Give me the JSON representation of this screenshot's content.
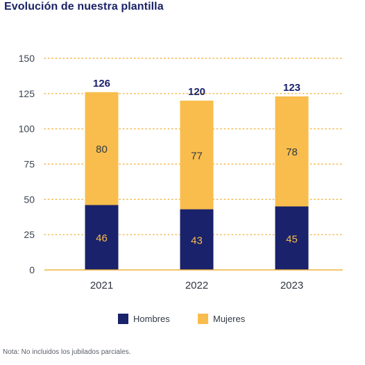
{
  "chart_data": {
    "type": "bar",
    "stacked": true,
    "title": "Evolución de nuestra plantilla",
    "categories": [
      "2021",
      "2022",
      "2023"
    ],
    "series": [
      {
        "name": "Hombres",
        "values": [
          46,
          43,
          45
        ],
        "color": "#19226a"
      },
      {
        "name": "Mujeres",
        "values": [
          80,
          77,
          78
        ],
        "color": "#f8bd4c"
      }
    ],
    "totals": [
      126,
      120,
      123
    ],
    "ylim": [
      0,
      150
    ],
    "yticks": [
      0,
      25,
      50,
      75,
      100,
      125,
      150
    ],
    "grid": true,
    "grid_color": "#f2b33d",
    "legend_position": "bottom",
    "xlabel": "",
    "ylabel": ""
  },
  "note": "Nota: No incluidos los jubilados parciales."
}
